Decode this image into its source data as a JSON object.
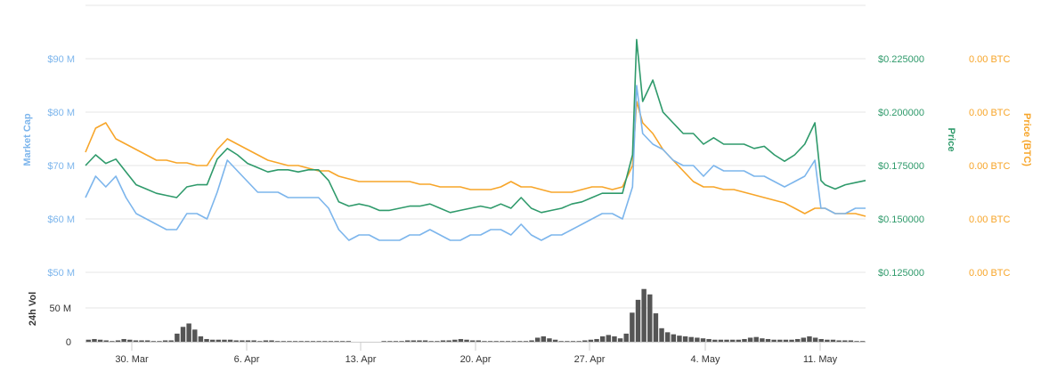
{
  "chart_data": {
    "type": "line",
    "series": [
      {
        "name": "Market Cap",
        "axis": "market_cap",
        "color": "#7cb5ec",
        "unit": "USD",
        "points": [
          [
            0,
            64
          ],
          [
            0.5,
            68
          ],
          [
            1,
            66
          ],
          [
            1.5,
            68
          ],
          [
            2,
            64
          ],
          [
            2.5,
            61
          ],
          [
            3,
            60
          ],
          [
            3.5,
            59
          ],
          [
            4,
            58
          ],
          [
            4.5,
            58
          ],
          [
            5,
            61
          ],
          [
            5.5,
            61
          ],
          [
            6,
            60
          ],
          [
            6.5,
            65
          ],
          [
            7,
            71
          ],
          [
            7.5,
            69
          ],
          [
            8,
            67
          ],
          [
            8.5,
            65
          ],
          [
            9,
            65
          ],
          [
            9.5,
            65
          ],
          [
            10,
            64
          ],
          [
            10.5,
            64
          ],
          [
            11,
            64
          ],
          [
            11.5,
            64
          ],
          [
            12,
            62
          ],
          [
            12.5,
            58
          ],
          [
            13,
            56
          ],
          [
            13.5,
            57
          ],
          [
            14,
            57
          ],
          [
            14.5,
            56
          ],
          [
            15,
            56
          ],
          [
            15.5,
            56
          ],
          [
            16,
            57
          ],
          [
            16.5,
            57
          ],
          [
            17,
            58
          ],
          [
            17.5,
            57
          ],
          [
            18,
            56
          ],
          [
            18.5,
            56
          ],
          [
            19,
            57
          ],
          [
            19.5,
            57
          ],
          [
            20,
            58
          ],
          [
            20.5,
            58
          ],
          [
            21,
            57
          ],
          [
            21.5,
            59
          ],
          [
            22,
            57
          ],
          [
            22.5,
            56
          ],
          [
            23,
            57
          ],
          [
            23.5,
            57
          ],
          [
            24,
            58
          ],
          [
            24.5,
            59
          ],
          [
            25,
            60
          ],
          [
            25.5,
            61
          ],
          [
            26,
            61
          ],
          [
            26.5,
            60
          ],
          [
            27,
            66
          ],
          [
            27.2,
            85
          ],
          [
            27.5,
            76
          ],
          [
            28,
            74
          ],
          [
            28.5,
            73
          ],
          [
            29,
            71
          ],
          [
            29.5,
            70
          ],
          [
            30,
            70
          ],
          [
            30.5,
            68
          ],
          [
            31,
            70
          ],
          [
            31.5,
            69
          ],
          [
            32,
            69
          ],
          [
            32.5,
            69
          ],
          [
            33,
            68
          ],
          [
            33.5,
            68
          ],
          [
            34,
            67
          ],
          [
            34.5,
            66
          ],
          [
            35,
            67
          ],
          [
            35.5,
            68
          ],
          [
            36,
            71
          ],
          [
            36.3,
            62
          ],
          [
            36.5,
            62
          ],
          [
            37,
            61
          ],
          [
            37.5,
            61
          ],
          [
            38,
            62
          ],
          [
            38.5,
            62
          ]
        ]
      },
      {
        "name": "Price",
        "axis": "price",
        "color": "#2f9a6b",
        "unit": "USD",
        "points": [
          [
            0,
            0.175
          ],
          [
            0.5,
            0.18
          ],
          [
            1,
            0.176
          ],
          [
            1.5,
            0.178
          ],
          [
            2,
            0.172
          ],
          [
            2.5,
            0.166
          ],
          [
            3,
            0.164
          ],
          [
            3.5,
            0.162
          ],
          [
            4,
            0.161
          ],
          [
            4.5,
            0.16
          ],
          [
            5,
            0.165
          ],
          [
            5.5,
            0.166
          ],
          [
            6,
            0.166
          ],
          [
            6.5,
            0.178
          ],
          [
            7,
            0.183
          ],
          [
            7.5,
            0.18
          ],
          [
            8,
            0.176
          ],
          [
            8.5,
            0.174
          ],
          [
            9,
            0.172
          ],
          [
            9.5,
            0.173
          ],
          [
            10,
            0.173
          ],
          [
            10.5,
            0.172
          ],
          [
            11,
            0.173
          ],
          [
            11.5,
            0.173
          ],
          [
            12,
            0.168
          ],
          [
            12.5,
            0.158
          ],
          [
            13,
            0.156
          ],
          [
            13.5,
            0.157
          ],
          [
            14,
            0.156
          ],
          [
            14.5,
            0.154
          ],
          [
            15,
            0.154
          ],
          [
            15.5,
            0.155
          ],
          [
            16,
            0.156
          ],
          [
            16.5,
            0.156
          ],
          [
            17,
            0.157
          ],
          [
            17.5,
            0.155
          ],
          [
            18,
            0.153
          ],
          [
            18.5,
            0.154
          ],
          [
            19,
            0.155
          ],
          [
            19.5,
            0.156
          ],
          [
            20,
            0.155
          ],
          [
            20.5,
            0.157
          ],
          [
            21,
            0.155
          ],
          [
            21.5,
            0.16
          ],
          [
            22,
            0.155
          ],
          [
            22.5,
            0.153
          ],
          [
            23,
            0.154
          ],
          [
            23.5,
            0.155
          ],
          [
            24,
            0.157
          ],
          [
            24.5,
            0.158
          ],
          [
            25,
            0.16
          ],
          [
            25.5,
            0.162
          ],
          [
            26,
            0.162
          ],
          [
            26.5,
            0.162
          ],
          [
            27,
            0.18
          ],
          [
            27.2,
            0.234
          ],
          [
            27.5,
            0.205
          ],
          [
            28,
            0.215
          ],
          [
            28.5,
            0.2
          ],
          [
            29,
            0.195
          ],
          [
            29.5,
            0.19
          ],
          [
            30,
            0.19
          ],
          [
            30.5,
            0.185
          ],
          [
            31,
            0.188
          ],
          [
            31.5,
            0.185
          ],
          [
            32,
            0.185
          ],
          [
            32.5,
            0.185
          ],
          [
            33,
            0.183
          ],
          [
            33.5,
            0.184
          ],
          [
            34,
            0.18
          ],
          [
            34.5,
            0.177
          ],
          [
            35,
            0.18
          ],
          [
            35.5,
            0.185
          ],
          [
            36,
            0.195
          ],
          [
            36.3,
            0.168
          ],
          [
            36.5,
            0.166
          ],
          [
            37,
            0.164
          ],
          [
            37.5,
            0.166
          ],
          [
            38,
            0.167
          ],
          [
            38.5,
            0.168
          ]
        ]
      },
      {
        "name": "Price (BTC)",
        "axis": "price_btc",
        "color": "#f7a529",
        "unit": "BTC",
        "points": [
          [
            0,
            72.5
          ],
          [
            0.5,
            77
          ],
          [
            1,
            78
          ],
          [
            1.5,
            75
          ],
          [
            2,
            74
          ],
          [
            2.5,
            73
          ],
          [
            3,
            72
          ],
          [
            3.5,
            71
          ],
          [
            4,
            71
          ],
          [
            4.5,
            70.5
          ],
          [
            5,
            70.5
          ],
          [
            5.5,
            70
          ],
          [
            6,
            70
          ],
          [
            6.5,
            73
          ],
          [
            7,
            75
          ],
          [
            7.5,
            74
          ],
          [
            8,
            73
          ],
          [
            8.5,
            72
          ],
          [
            9,
            71
          ],
          [
            9.5,
            70.5
          ],
          [
            10,
            70
          ],
          [
            10.5,
            70
          ],
          [
            11,
            69.5
          ],
          [
            11.5,
            69
          ],
          [
            12,
            69
          ],
          [
            12.5,
            68
          ],
          [
            13,
            67.5
          ],
          [
            13.5,
            67
          ],
          [
            14,
            67
          ],
          [
            14.5,
            67
          ],
          [
            15,
            67
          ],
          [
            15.5,
            67
          ],
          [
            16,
            67
          ],
          [
            16.5,
            66.5
          ],
          [
            17,
            66.5
          ],
          [
            17.5,
            66
          ],
          [
            18,
            66
          ],
          [
            18.5,
            66
          ],
          [
            19,
            65.5
          ],
          [
            19.5,
            65.5
          ],
          [
            20,
            65.5
          ],
          [
            20.5,
            66
          ],
          [
            21,
            67
          ],
          [
            21.5,
            66
          ],
          [
            22,
            66
          ],
          [
            22.5,
            65.5
          ],
          [
            23,
            65
          ],
          [
            23.5,
            65
          ],
          [
            24,
            65
          ],
          [
            24.5,
            65.5
          ],
          [
            25,
            66
          ],
          [
            25.5,
            66
          ],
          [
            26,
            65.5
          ],
          [
            26.5,
            66
          ],
          [
            27,
            70
          ],
          [
            27.2,
            82
          ],
          [
            27.5,
            78
          ],
          [
            28,
            76
          ],
          [
            28.5,
            73
          ],
          [
            29,
            71
          ],
          [
            29.5,
            69
          ],
          [
            30,
            67
          ],
          [
            30.5,
            66
          ],
          [
            31,
            66
          ],
          [
            31.5,
            65.5
          ],
          [
            32,
            65.5
          ],
          [
            32.5,
            65
          ],
          [
            33,
            64.5
          ],
          [
            33.5,
            64
          ],
          [
            34,
            63.5
          ],
          [
            34.5,
            63
          ],
          [
            35,
            62
          ],
          [
            35.5,
            61
          ],
          [
            36,
            62
          ],
          [
            36.3,
            62
          ],
          [
            36.5,
            62
          ],
          [
            37,
            61
          ],
          [
            37.5,
            61
          ],
          [
            38,
            61
          ],
          [
            38.5,
            60.5
          ]
        ]
      }
    ],
    "volume": {
      "name": "24h Vol",
      "color": "#555555",
      "unit": "USD",
      "values": [
        3,
        4,
        3,
        2,
        1,
        2,
        4,
        3,
        2,
        2,
        2,
        1,
        1,
        2,
        2,
        12,
        22,
        27,
        18,
        8,
        4,
        3,
        3,
        3,
        3,
        2,
        2,
        2,
        2,
        1,
        2,
        2,
        1,
        1,
        1,
        1,
        1,
        1,
        1,
        1,
        1,
        1,
        1,
        1,
        1,
        0,
        0,
        0,
        0,
        0,
        1,
        1,
        1,
        1,
        2,
        2,
        2,
        2,
        1,
        1,
        2,
        2,
        3,
        4,
        3,
        2,
        2,
        1,
        1,
        1,
        1,
        1,
        1,
        1,
        1,
        2,
        6,
        8,
        5,
        3,
        1,
        1,
        1,
        1,
        2,
        3,
        4,
        8,
        10,
        8,
        5,
        12,
        43,
        62,
        78,
        70,
        42,
        20,
        14,
        11,
        9,
        8,
        7,
        6,
        5,
        4,
        3,
        3,
        3,
        3,
        3,
        4,
        6,
        7,
        5,
        4,
        3,
        3,
        3,
        3,
        4,
        6,
        8,
        6,
        4,
        3,
        3,
        2,
        2,
        2,
        1,
        1
      ]
    },
    "x_axis": {
      "min": 0,
      "max": 39,
      "tick_positions": [
        2,
        9,
        16,
        23,
        30,
        37,
        44
      ],
      "tick_labels": [
        "30. Mar",
        "6. Apr",
        "13. Apr",
        "20. Apr",
        "27. Apr",
        "4. May",
        "11. May"
      ]
    },
    "y_axes": {
      "market_cap": {
        "title": "Market Cap",
        "color": "#7cb5ec",
        "ticks": [
          60,
          70,
          80,
          90
        ],
        "tick_labels": [
          "$60 M",
          "$70 M",
          "$80 M",
          "$90 M"
        ],
        "range": [
          50,
          100
        ]
      },
      "price": {
        "title": "Price",
        "color": "#2f9a6b",
        "ticks": [
          0.125,
          0.15,
          0.175,
          0.2,
          0.225
        ],
        "tick_labels": [
          "$0.125000",
          "$0.150000",
          "$0.175000",
          "$0.200000",
          "$0.225000"
        ],
        "range": [
          0.125,
          0.25
        ]
      },
      "price_btc": {
        "title": "Price (BTC)",
        "color": "#f7a529",
        "ticks": [
          50,
          60,
          70,
          80,
          90
        ],
        "tick_labels": [
          "0.00 BTC",
          "0.00 BTC",
          "0.00 BTC",
          "0.00 BTC",
          "0.00 BTC"
        ],
        "range": [
          50,
          100
        ]
      },
      "volume": {
        "title": "24h Vol",
        "color": "#333333",
        "ticks": [
          0,
          50,
          100
        ],
        "tick_labels": [
          "0",
          "50 M",
          "$50 M"
        ],
        "range": [
          0,
          100
        ]
      }
    },
    "grid": true
  }
}
